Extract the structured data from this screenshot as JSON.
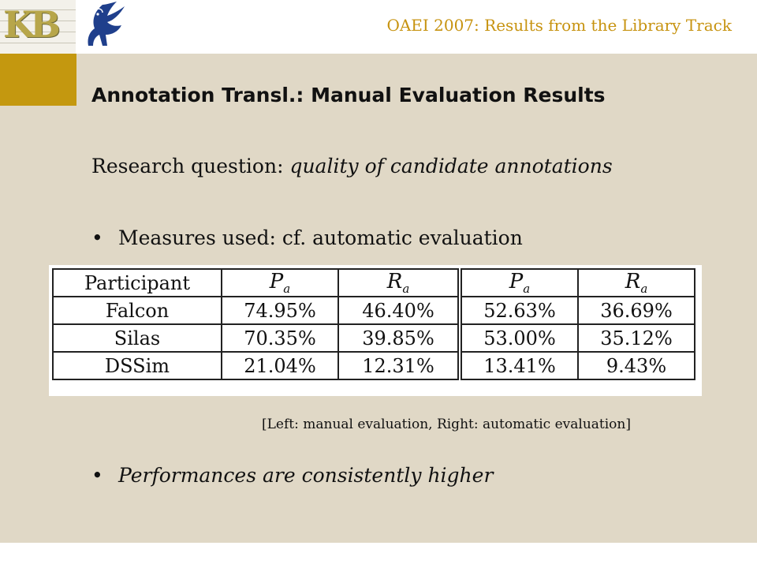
{
  "header": {
    "title": "OAEI 2007: Results from the Library Track",
    "logo_text": "KB"
  },
  "slide": {
    "title": "Annotation Transl.: Manual Evaluation Results",
    "research_prefix": "Research question: ",
    "research_question": "quality of candidate annotations",
    "bullet_1": "Measures used: cf. automatic evaluation",
    "caption": "[Left: manual evaluation, Right: automatic evaluation]",
    "bullet_2": "Performances are consistently higher",
    "bullet_symbol": "•"
  },
  "table": {
    "header": {
      "participant": "Participant",
      "p_symbol": "P",
      "r_symbol": "R",
      "subscript": "a"
    },
    "rows": [
      {
        "participant": "Falcon",
        "manual_p": "74.95%",
        "manual_r": "46.40%",
        "auto_p": "52.63%",
        "auto_r": "36.69%"
      },
      {
        "participant": "Silas",
        "manual_p": "70.35%",
        "manual_r": "39.85%",
        "auto_p": "53.00%",
        "auto_r": "35.12%"
      },
      {
        "participant": "DSSim",
        "manual_p": "21.04%",
        "manual_r": "12.31%",
        "auto_p": "13.41%",
        "auto_r": "9.43%"
      }
    ]
  },
  "colors": {
    "accent_gold": "#c4980f",
    "header_text": "#c79310",
    "panel_background": "#e0d8c6"
  }
}
